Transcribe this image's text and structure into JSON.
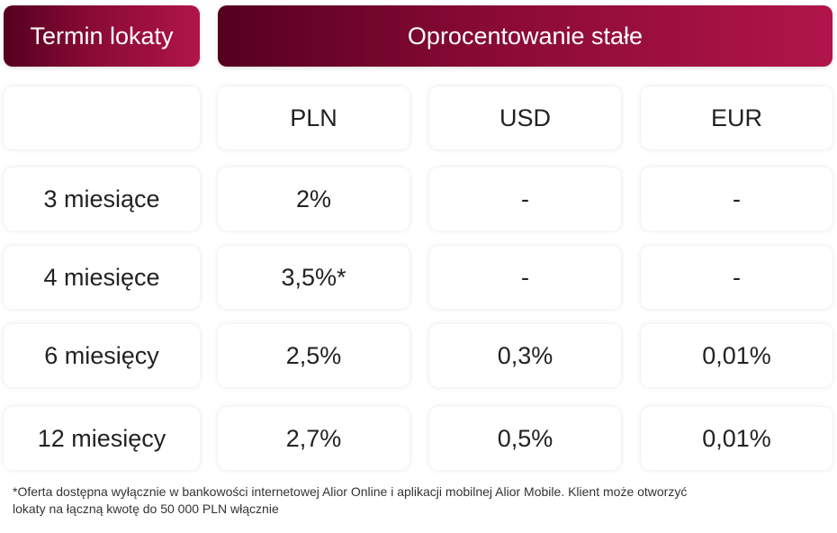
{
  "header": {
    "term_label": "Termin lokaty",
    "rate_label": "Oprocentowanie stałe"
  },
  "columns": [
    "",
    "PLN",
    "USD",
    "EUR"
  ],
  "rows": [
    {
      "term": "3 miesiące",
      "pln": "2%",
      "usd": "-",
      "eur": "-"
    },
    {
      "term": "4 miesięce",
      "pln": "3,5%*",
      "usd": "-",
      "eur": "-"
    },
    {
      "term": "6 miesięcy",
      "pln": "2,5%",
      "usd": "0,3%",
      "eur": "0,01%"
    },
    {
      "term": "12 miesięcy",
      "pln": "2,7%",
      "usd": "0,5%",
      "eur": "0,01%"
    }
  ],
  "footnote": {
    "line1": "*Oferta dostępna wyłącznie w bankowości internetowej Alior Online i aplikacji mobilnej Alior Mobile. Klient może otworzyć",
    "line2": "lokaty na łączną kwotę do 50 000 PLN włącznie"
  },
  "colors": {
    "header_gradient_start": "#55001f",
    "header_gradient_end": "#b0154a"
  }
}
